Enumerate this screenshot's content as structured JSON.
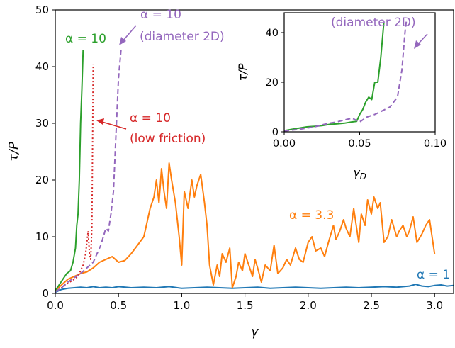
{
  "chart_data": [
    {
      "type": "line",
      "title": "",
      "xlabel": "γ",
      "ylabel": "τ/P",
      "xlim": [
        0.0,
        3.15
      ],
      "ylim": [
        0,
        50
      ],
      "xticks": [
        "0.0",
        "0.5",
        "1.0",
        "1.5",
        "2.0",
        "2.5",
        "3.0"
      ],
      "yticks": [
        "0",
        "10",
        "20",
        "30",
        "40",
        "50"
      ],
      "grid": false,
      "legend": "none (inline annotations)",
      "colors": {
        "alpha1": "#1f77b4",
        "alpha3_3": "#ff7f0e",
        "alpha10": "#2ca02c",
        "alpha10_low_friction": "#d62728",
        "alpha10_diameter2d": "#9467bd"
      },
      "annotations": {
        "alpha10": "α = 10",
        "alpha10_diameter2d_line1": "α = 10",
        "alpha10_diameter2d_line2": "(diameter 2D)",
        "alpha10_low_friction_line1": "α = 10",
        "alpha10_low_friction_line2": "(low friction)",
        "alpha3_3": "α = 3.3",
        "alpha1": "α = 1"
      },
      "series": [
        {
          "key": "alpha1",
          "style": "solid",
          "x": [
            0.0,
            0.05,
            0.1,
            0.15,
            0.2,
            0.25,
            0.3,
            0.35,
            0.4,
            0.45,
            0.5,
            0.6,
            0.7,
            0.8,
            0.9,
            1.0,
            1.1,
            1.2,
            1.3,
            1.4,
            1.5,
            1.6,
            1.7,
            1.8,
            1.9,
            2.0,
            2.1,
            2.2,
            2.3,
            2.4,
            2.5,
            2.6,
            2.7,
            2.8,
            2.85,
            2.9,
            2.95,
            3.0,
            3.05,
            3.1,
            3.15
          ],
          "y": [
            0.2,
            0.7,
            0.9,
            1.0,
            1.1,
            1.0,
            1.2,
            1.0,
            1.1,
            1.0,
            1.2,
            1.0,
            1.1,
            1.0,
            1.2,
            0.9,
            1.0,
            1.1,
            1.0,
            0.9,
            1.0,
            1.1,
            0.9,
            1.0,
            1.1,
            1.0,
            0.9,
            1.0,
            1.1,
            1.0,
            1.1,
            1.2,
            1.1,
            1.3,
            1.6,
            1.3,
            1.2,
            1.4,
            1.5,
            1.3,
            1.4
          ]
        },
        {
          "key": "alpha3_3",
          "style": "solid",
          "x": [
            0.0,
            0.05,
            0.1,
            0.15,
            0.2,
            0.25,
            0.3,
            0.35,
            0.4,
            0.45,
            0.5,
            0.55,
            0.6,
            0.65,
            0.7,
            0.72,
            0.75,
            0.78,
            0.8,
            0.82,
            0.84,
            0.86,
            0.88,
            0.9,
            0.92,
            0.95,
            0.98,
            1.0,
            1.02,
            1.05,
            1.08,
            1.1,
            1.12,
            1.15,
            1.18,
            1.2,
            1.22,
            1.25,
            1.28,
            1.3,
            1.32,
            1.35,
            1.38,
            1.4,
            1.43,
            1.45,
            1.48,
            1.5,
            1.53,
            1.56,
            1.58,
            1.6,
            1.63,
            1.66,
            1.7,
            1.73,
            1.76,
            1.8,
            1.83,
            1.86,
            1.9,
            1.93,
            1.96,
            2.0,
            2.03,
            2.06,
            2.1,
            2.13,
            2.16,
            2.2,
            2.22,
            2.25,
            2.28,
            2.3,
            2.33,
            2.36,
            2.4,
            2.42,
            2.45,
            2.47,
            2.5,
            2.52,
            2.55,
            2.57,
            2.6,
            2.63,
            2.66,
            2.7,
            2.72,
            2.75,
            2.78,
            2.8,
            2.83,
            2.86,
            2.9,
            2.93,
            2.96,
            3.0
          ],
          "y": [
            0.5,
            1.5,
            2.5,
            3.0,
            3.5,
            3.8,
            4.5,
            5.5,
            6.0,
            6.5,
            5.5,
            5.8,
            7.0,
            8.5,
            10.0,
            12.0,
            15.0,
            17.0,
            20.0,
            16.0,
            22.0,
            18.0,
            15.0,
            23.0,
            20.0,
            16.0,
            10.0,
            5.0,
            18.0,
            15.0,
            20.0,
            17.0,
            19.0,
            21.0,
            16.0,
            12.0,
            5.0,
            1.5,
            5.0,
            3.0,
            7.0,
            5.5,
            8.0,
            1.0,
            3.0,
            5.5,
            4.0,
            7.0,
            5.0,
            3.0,
            6.0,
            4.5,
            2.0,
            5.0,
            4.0,
            8.5,
            3.5,
            4.5,
            6.0,
            5.0,
            8.0,
            6.0,
            5.5,
            9.0,
            10.0,
            7.5,
            8.0,
            6.5,
            9.0,
            12.0,
            9.5,
            11.0,
            13.0,
            11.5,
            10.0,
            15.0,
            9.0,
            14.0,
            12.0,
            16.5,
            14.0,
            17.0,
            15.0,
            16.0,
            9.0,
            10.0,
            13.0,
            10.0,
            11.0,
            12.0,
            10.0,
            11.0,
            13.5,
            9.0,
            10.5,
            12.0,
            13.0,
            7.0
          ]
        },
        {
          "key": "alpha10",
          "style": "solid",
          "x": [
            0.0,
            0.03,
            0.06,
            0.09,
            0.12,
            0.14,
            0.16,
            0.17,
            0.18,
            0.19,
            0.2,
            0.21,
            0.22
          ],
          "y": [
            0.5,
            1.5,
            2.5,
            3.5,
            4.0,
            5.5,
            8.0,
            12.0,
            14.0,
            20.0,
            30.0,
            36.0,
            43.0
          ]
        },
        {
          "key": "alpha10_low_friction",
          "style": "dotted",
          "x": [
            0.0,
            0.05,
            0.1,
            0.15,
            0.18,
            0.2,
            0.22,
            0.24,
            0.25,
            0.26,
            0.27,
            0.28,
            0.29,
            0.3
          ],
          "y": [
            0.3,
            1.0,
            1.8,
            2.5,
            3.0,
            4.0,
            5.0,
            7.0,
            9.0,
            11.0,
            7.0,
            6.0,
            12.0,
            40.5
          ]
        },
        {
          "key": "alpha10_diameter2d",
          "style": "dashed",
          "x": [
            0.0,
            0.05,
            0.1,
            0.15,
            0.2,
            0.25,
            0.3,
            0.33,
            0.36,
            0.38,
            0.4,
            0.42,
            0.44,
            0.46,
            0.48,
            0.5,
            0.52
          ],
          "y": [
            0.3,
            1.0,
            2.0,
            2.8,
            3.5,
            4.5,
            5.5,
            7.0,
            8.5,
            10.0,
            11.5,
            11.0,
            14.0,
            18.0,
            28.0,
            38.0,
            43.0
          ]
        }
      ]
    },
    {
      "type": "line",
      "title": "",
      "xlabel": "γ_D",
      "ylabel": "τ/P",
      "xlim": [
        0.0,
        0.1
      ],
      "ylim": [
        0,
        48
      ],
      "xticks": [
        "0.00",
        "0.05",
        "0.10"
      ],
      "yticks": [
        "0",
        "20",
        "40"
      ],
      "grid": false,
      "annotation": "(diameter 2D)",
      "series": [
        {
          "key": "alpha10",
          "style": "solid",
          "x": [
            0.0,
            0.005,
            0.01,
            0.015,
            0.02,
            0.025,
            0.03,
            0.035,
            0.04,
            0.045,
            0.048,
            0.05,
            0.052,
            0.054,
            0.056,
            0.058,
            0.06,
            0.062,
            0.064,
            0.066
          ],
          "y": [
            0.5,
            1.0,
            1.5,
            2.0,
            2.2,
            2.5,
            3.0,
            3.2,
            3.5,
            4.0,
            4.2,
            7.0,
            9.0,
            12.0,
            14.0,
            13.0,
            20.0,
            20.0,
            30.0,
            44.0
          ]
        },
        {
          "key": "alpha10_diameter2d",
          "style": "dashed",
          "x": [
            0.0,
            0.005,
            0.01,
            0.015,
            0.02,
            0.025,
            0.03,
            0.035,
            0.04,
            0.045,
            0.05,
            0.055,
            0.06,
            0.065,
            0.07,
            0.075,
            0.078,
            0.08,
            0.081
          ],
          "y": [
            0.3,
            0.7,
            1.0,
            1.5,
            2.0,
            2.8,
            3.5,
            4.0,
            4.8,
            5.5,
            4.0,
            6.0,
            7.0,
            8.5,
            10.0,
            14.0,
            25.0,
            40.0,
            45.0
          ]
        }
      ]
    }
  ]
}
